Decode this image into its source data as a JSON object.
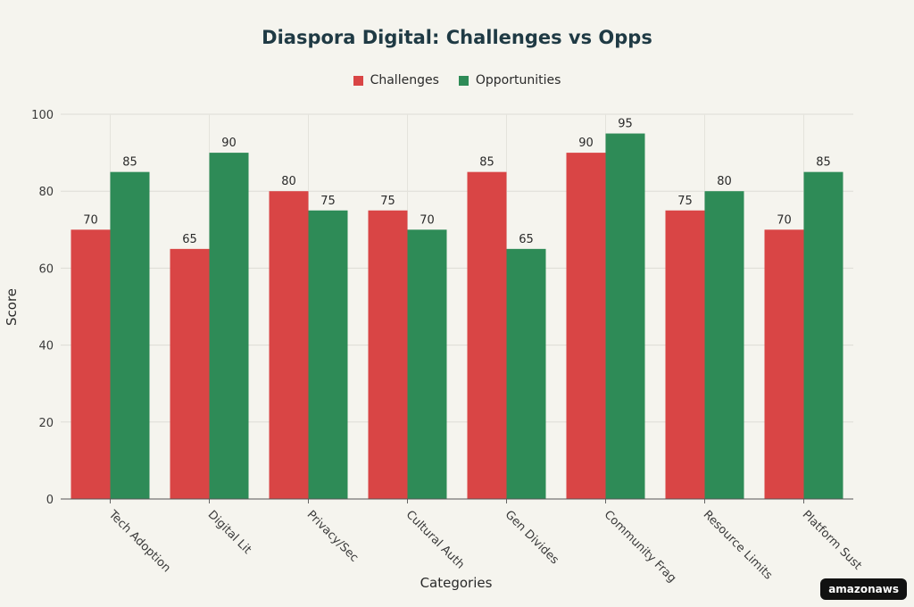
{
  "chart_data": {
    "type": "bar",
    "title": "Diaspora Digital: Challenges vs Opps",
    "xlabel": "Categories",
    "ylabel": "Score",
    "categories": [
      "Tech Adoption",
      "Digital Lit",
      "Privacy/Sec",
      "Cultural Auth",
      "Gen Divides",
      "Community Frag",
      "Resource Limits",
      "Platform Sust"
    ],
    "series": [
      {
        "name": "Challenges",
        "color": "#d94545",
        "values": [
          70,
          65,
          80,
          75,
          85,
          90,
          75,
          70
        ]
      },
      {
        "name": "Opportunities",
        "color": "#2e8b57",
        "values": [
          85,
          90,
          75,
          70,
          65,
          95,
          80,
          85
        ]
      }
    ],
    "ylim": [
      0,
      100
    ],
    "yticks": [
      0,
      20,
      40,
      60,
      80,
      100
    ],
    "grid": true,
    "legend_position": "top-center",
    "show_data_labels": true
  },
  "badge": {
    "label": "amazonaws"
  }
}
